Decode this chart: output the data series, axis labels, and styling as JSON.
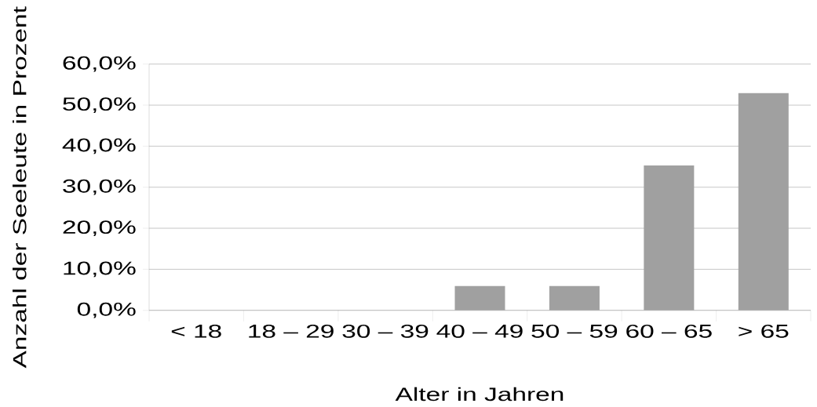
{
  "chart_data": {
    "type": "bar",
    "xlabel": "Alter in Jahren",
    "ylabel": "Anzahl der Seeleute in Prozent",
    "categories": [
      "< 18",
      "18 – 29",
      "30 – 39",
      "40 – 49",
      "50 – 59",
      "60 – 65",
      "> 65"
    ],
    "values": [
      0,
      0,
      0,
      5.9,
      5.9,
      35.3,
      52.9
    ],
    "color": "#a0a0a0",
    "ylim": [
      0,
      60
    ],
    "yticks": [
      {
        "value": 0,
        "label": "0,0%"
      },
      {
        "value": 10,
        "label": "10,0%"
      },
      {
        "value": 20,
        "label": "20,0%"
      },
      {
        "value": 30,
        "label": "30,0%"
      },
      {
        "value": 40,
        "label": "40,0%"
      },
      {
        "value": 50,
        "label": "50,0%"
      },
      {
        "value": 60,
        "label": "60,0%"
      }
    ],
    "grid": "y"
  }
}
